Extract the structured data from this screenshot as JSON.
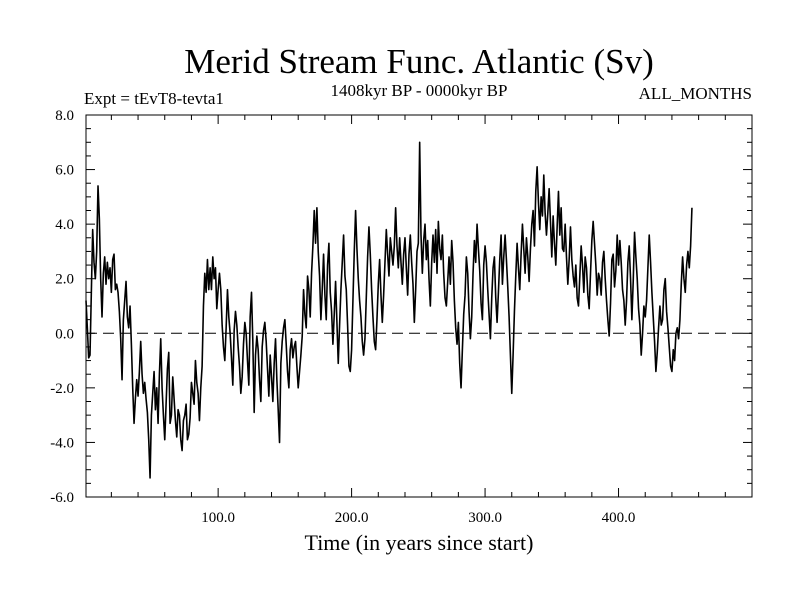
{
  "chart_data": {
    "type": "line",
    "title": "Merid Stream Func. Atlantic (Sv)",
    "subtitle_left": "Expt = tEvT8-tevta1",
    "subtitle_center": "1408kyr BP - 0000kyr BP",
    "subtitle_right": "ALL_MONTHS",
    "xlabel": "Time (in years since start)",
    "ylabel": "",
    "xlim": [
      1,
      500
    ],
    "ylim": [
      -6,
      8
    ],
    "x_ticks": [
      100,
      200,
      300,
      400
    ],
    "x_tick_labels": [
      "100.0",
      "200.0",
      "300.0",
      "400.0"
    ],
    "y_ticks": [
      -6,
      -4,
      -2,
      0,
      2,
      4,
      6,
      8
    ],
    "y_tick_labels": [
      "-6.0",
      "-4.0",
      "-2.0",
      "0.0",
      "2.0",
      "4.0",
      "6.0",
      "8.0"
    ],
    "reference_line": 0,
    "series": [
      {
        "name": "Merid Stream Func. Atlantic",
        "x_start": 1,
        "x_step": 1,
        "values": [
          1.2,
          0.2,
          -0.9,
          -0.8,
          1.5,
          3.8,
          2.6,
          2.0,
          3.0,
          5.4,
          4.2,
          2.0,
          0.6,
          2.2,
          2.8,
          1.8,
          2.6,
          2.0,
          2.4,
          1.5,
          2.7,
          2.9,
          1.6,
          1.8,
          1.5,
          0.8,
          -0.2,
          -1.7,
          0.5,
          1.2,
          1.9,
          0.6,
          0.2,
          1.0,
          -0.4,
          -2.0,
          -3.3,
          -2.4,
          -1.7,
          -2.3,
          -1.4,
          -0.3,
          -1.5,
          -2.2,
          -1.8,
          -2.4,
          -2.9,
          -3.9,
          -5.3,
          -3.0,
          -2.2,
          -1.4,
          -2.8,
          -2.0,
          -3.3,
          -1.5,
          -0.2,
          -2.0,
          -3.0,
          -3.9,
          -2.6,
          -1.3,
          -0.7,
          -3.3,
          -3.0,
          -1.6,
          -2.4,
          -3.2,
          -3.8,
          -2.8,
          -3.0,
          -3.9,
          -4.3,
          -3.2,
          -3.0,
          -2.6,
          -3.9,
          -3.7,
          -3.1,
          -1.8,
          -2.2,
          -2.6,
          -1.0,
          -1.8,
          -2.2,
          -3.2,
          -2.0,
          -1.2,
          1.0,
          2.2,
          1.5,
          2.7,
          1.6,
          2.4,
          1.6,
          2.8,
          2.0,
          2.4,
          0.9,
          1.6,
          2.2,
          1.6,
          0.3,
          -0.5,
          -1.0,
          0.2,
          1.6,
          0.6,
          0.0,
          -0.9,
          -1.9,
          0.1,
          0.8,
          0.3,
          -0.5,
          -1.2,
          -2.2,
          -1.6,
          -0.4,
          0.4,
          0.0,
          -1.0,
          -1.9,
          0.6,
          1.5,
          -0.3,
          -2.9,
          -0.8,
          -0.1,
          -0.6,
          -1.7,
          -2.5,
          -0.5,
          0.1,
          0.4,
          -0.3,
          -1.3,
          -2.3,
          -0.8,
          -1.6,
          -2.5,
          -1.1,
          -0.2,
          -1.7,
          -2.8,
          -4.0,
          -1.1,
          -0.3,
          0.2,
          0.5,
          -0.4,
          -1.4,
          -2.0,
          -0.6,
          -0.2,
          -0.9,
          -0.5,
          -0.3,
          -1.2,
          -2.0,
          -1.4,
          -0.8,
          -0.1,
          1.6,
          0.7,
          0.2,
          2.1,
          1.6,
          0.6,
          2.2,
          3.2,
          4.5,
          3.3,
          4.6,
          3.0,
          2.1,
          0.5,
          1.6,
          2.9,
          1.4,
          0.5,
          2.5,
          3.3,
          1.5,
          0.8,
          -0.4,
          0.7,
          1.9,
          0.4,
          -1.1,
          0.3,
          1.6,
          2.6,
          3.6,
          2.1,
          1.6,
          0.3,
          -1.2,
          -1.4,
          -0.6,
          1.2,
          3.0,
          4.5,
          3.1,
          2.0,
          1.2,
          0.6,
          -0.3,
          -0.8,
          -0.2,
          1.3,
          2.8,
          3.9,
          2.9,
          1.6,
          0.6,
          -0.3,
          -0.6,
          0.5,
          1.8,
          2.7,
          1.4,
          0.4,
          1.4,
          2.6,
          3.8,
          2.9,
          2.1,
          3.5,
          3.0,
          2.5,
          3.2,
          4.6,
          3.2,
          2.4,
          3.5,
          2.6,
          1.8,
          2.9,
          3.5,
          2.4,
          1.4,
          2.9,
          3.6,
          2.6,
          1.8,
          0.4,
          1.6,
          3.0,
          3.3,
          7.0,
          3.6,
          2.2,
          3.4,
          4.0,
          2.7,
          3.4,
          2.0,
          1.0,
          2.6,
          3.6,
          2.6,
          3.8,
          2.2,
          4.1,
          3.1,
          2.7,
          3.6,
          2.2,
          1.3,
          1.0,
          1.9,
          2.8,
          1.8,
          3.4,
          2.6,
          1.2,
          0.2,
          -0.4,
          0.4,
          -1.1,
          -2.0,
          -0.6,
          0.7,
          1.4,
          2.8,
          2.2,
          0.8,
          -0.2,
          0.6,
          2.2,
          3.4,
          2.6,
          4.0,
          3.1,
          2.3,
          1.1,
          0.5,
          2.5,
          3.2,
          2.6,
          1.6,
          0.7,
          -0.2,
          1.3,
          2.4,
          2.8,
          1.3,
          0.4,
          1.5,
          2.7,
          3.6,
          1.8,
          2.8,
          3.6,
          2.7,
          1.7,
          0.6,
          -0.8,
          -2.2,
          -0.8,
          0.8,
          2.1,
          3.3,
          2.4,
          1.6,
          2.9,
          4.0,
          3.1,
          2.2,
          3.5,
          2.8,
          1.9,
          3.1,
          4.0,
          4.5,
          3.2,
          5.2,
          6.1,
          4.8,
          3.8,
          5.0,
          4.3,
          5.8,
          4.4,
          3.6,
          4.4,
          5.3,
          4.1,
          2.8,
          4.3,
          3.3,
          2.5,
          3.9,
          5.2,
          3.6,
          4.6,
          3.1,
          3.0,
          4.0,
          2.8,
          1.8,
          2.7,
          3.9,
          2.7,
          2.1,
          1.7,
          2.5,
          1.3,
          1.0,
          2.1,
          3.2,
          2.5,
          1.5,
          2.8,
          2.4,
          1.4,
          0.9,
          2.2,
          3.4,
          4.1,
          3.3,
          2.5,
          1.4,
          2.2,
          2.0,
          1.4,
          2.6,
          3.0,
          2.0,
          1.2,
          0.5,
          -0.1,
          1.1,
          2.7,
          2.9,
          1.7,
          2.3,
          3.6,
          2.5,
          3.4,
          2.6,
          1.6,
          1.2,
          0.3,
          1.2,
          2.6,
          3.2,
          2.0,
          0.5,
          1.9,
          3.7,
          2.8,
          2.0,
          0.9,
          0.3,
          -0.8,
          0.0,
          1.0,
          0.6,
          1.2,
          2.4,
          3.6,
          2.6,
          1.5,
          0.6,
          -0.3,
          -1.4,
          -0.7,
          0.2,
          1.0,
          0.3,
          0.5,
          1.6,
          2.0,
          0.8,
          0.2,
          -0.5,
          -1.2,
          -1.4,
          -0.6,
          -1.0,
          0.0,
          0.2,
          -0.2,
          0.5,
          1.8,
          2.8,
          2.0,
          1.5,
          2.5,
          3.0,
          2.4,
          3.2,
          4.6
        ]
      }
    ]
  }
}
